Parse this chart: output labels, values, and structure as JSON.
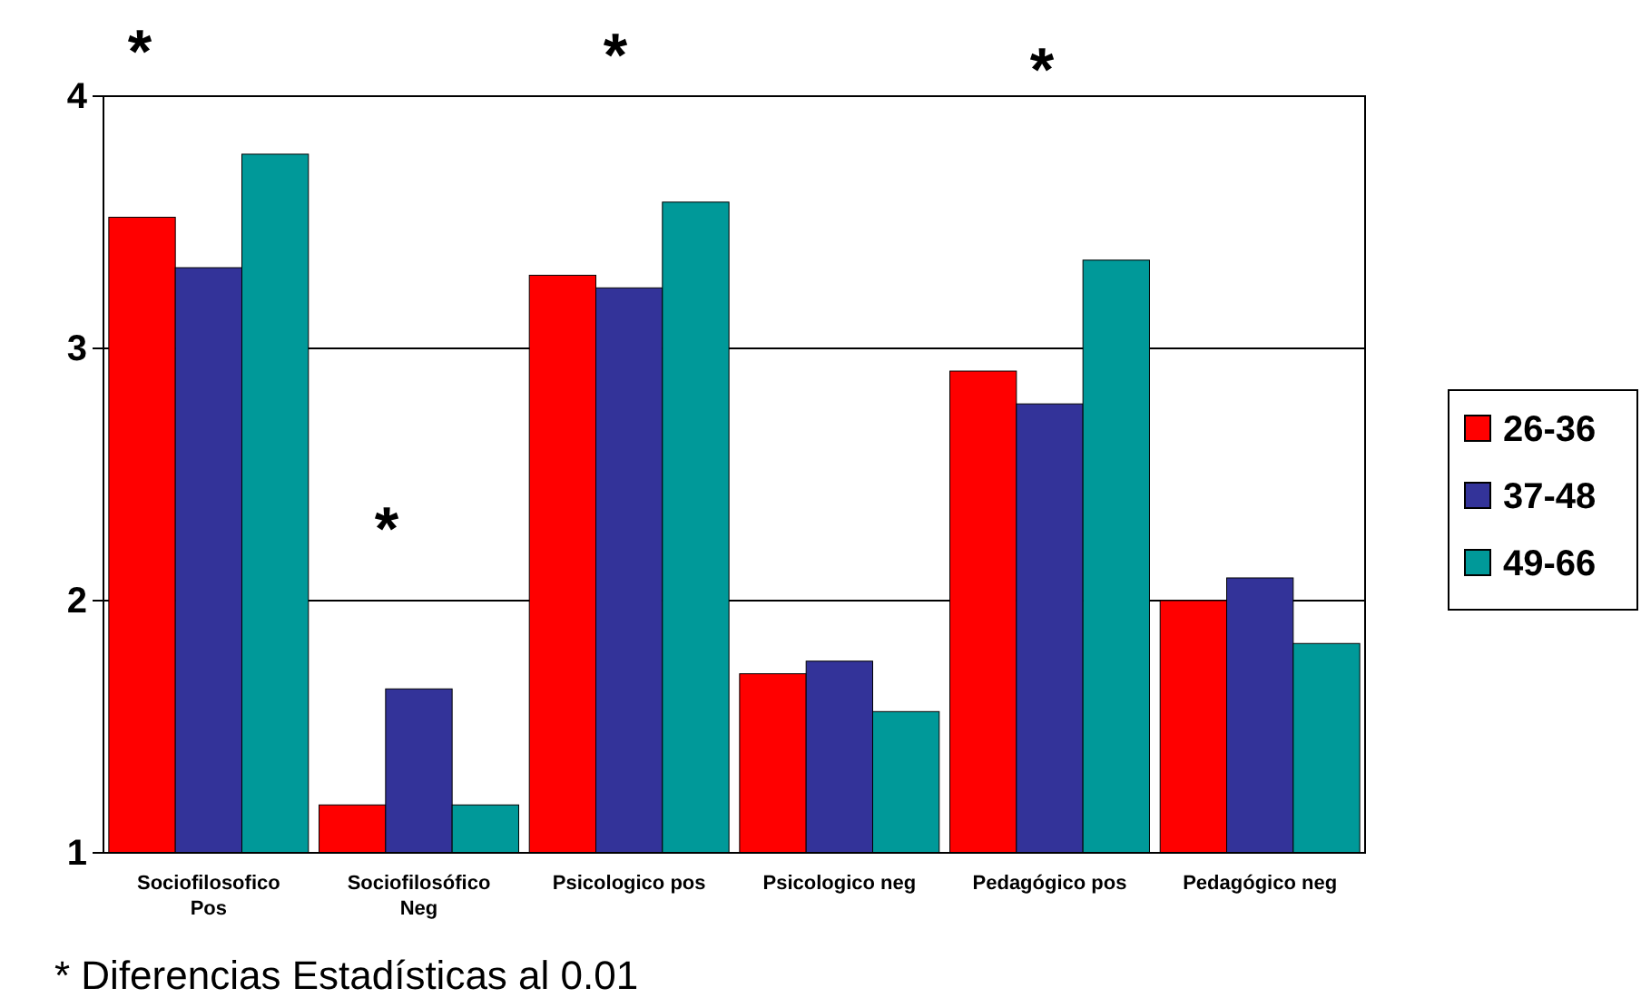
{
  "chart_data": {
    "type": "bar",
    "categories": [
      "Sociofilosofico\nPos",
      "Sociofilosófico\nNeg",
      "Psicologico pos",
      "Psicologico neg",
      "Pedagógico pos",
      "Pedagógico neg"
    ],
    "series": [
      {
        "name": "26-36",
        "color": "#ff0000",
        "values": [
          3.52,
          1.19,
          3.29,
          1.71,
          2.91,
          2.0
        ]
      },
      {
        "name": "37-48",
        "color": "#333399",
        "values": [
          3.32,
          1.65,
          3.24,
          1.76,
          2.78,
          2.09
        ]
      },
      {
        "name": "49-66",
        "color": "#009999",
        "values": [
          3.77,
          1.19,
          3.58,
          1.56,
          3.35,
          1.83
        ]
      }
    ],
    "ylim": [
      1,
      4
    ],
    "yticks": [
      1,
      2,
      3,
      4
    ],
    "grid": "y",
    "legend": "right",
    "annotations": [
      "*",
      "*",
      "*",
      "*",
      "* Diferencias Estadísticas al 0.01"
    ]
  }
}
